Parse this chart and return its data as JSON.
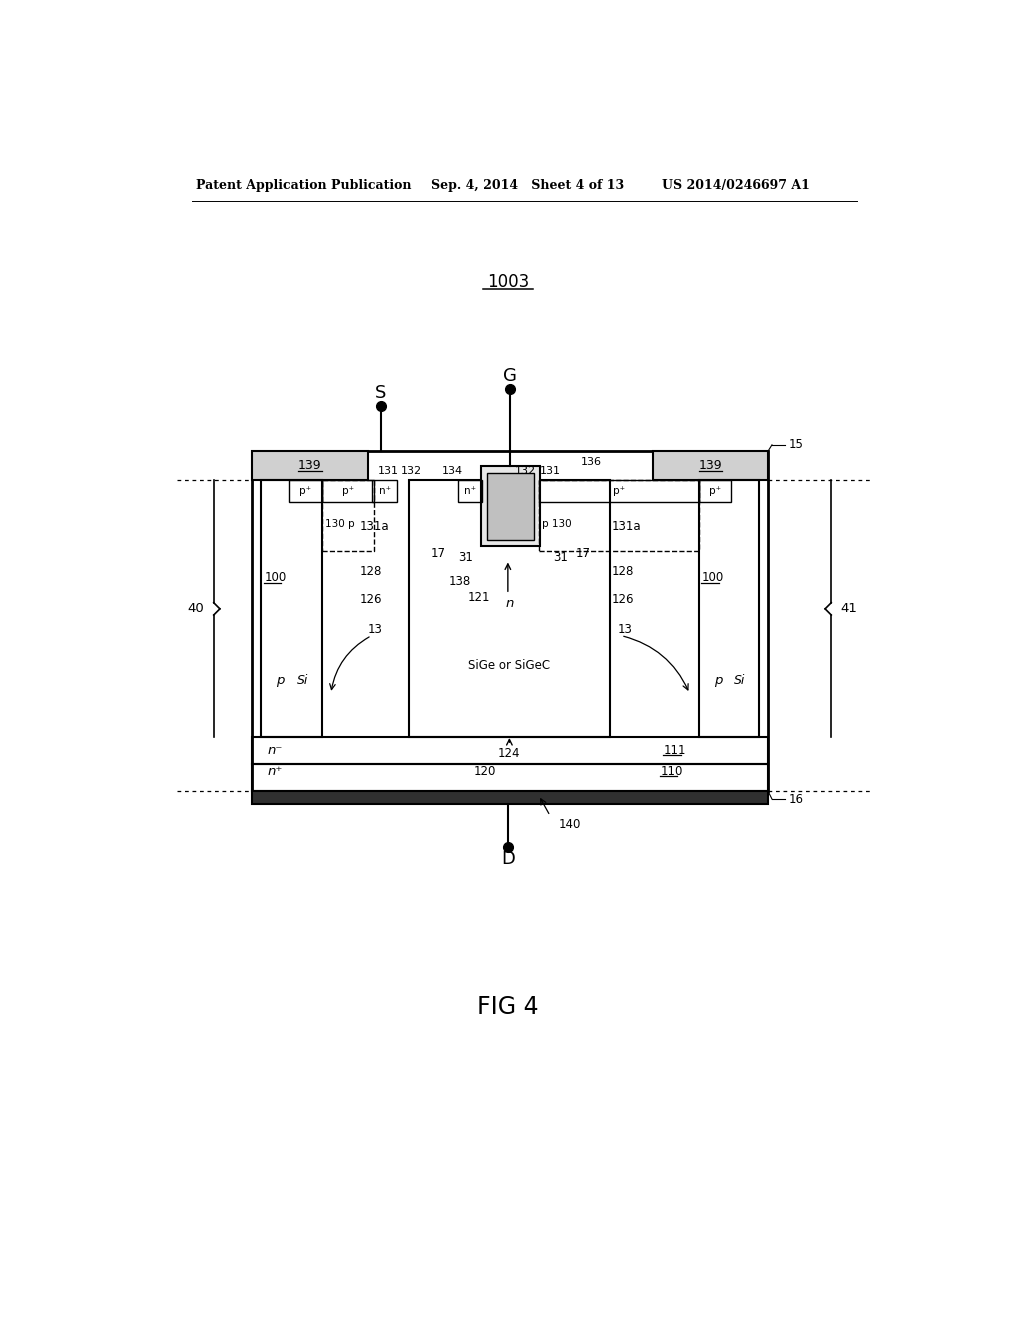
{
  "header_left": "Patent Application Publication",
  "header_mid": "Sep. 4, 2014   Sheet 4 of 13",
  "header_right": "US 2014/0246697 A1",
  "figure_label": "FIG 4",
  "diagram_label": "1003",
  "bg_color": "#ffffff",
  "line_color": "#000000",
  "fig_width": 10.24,
  "fig_height": 13.2
}
